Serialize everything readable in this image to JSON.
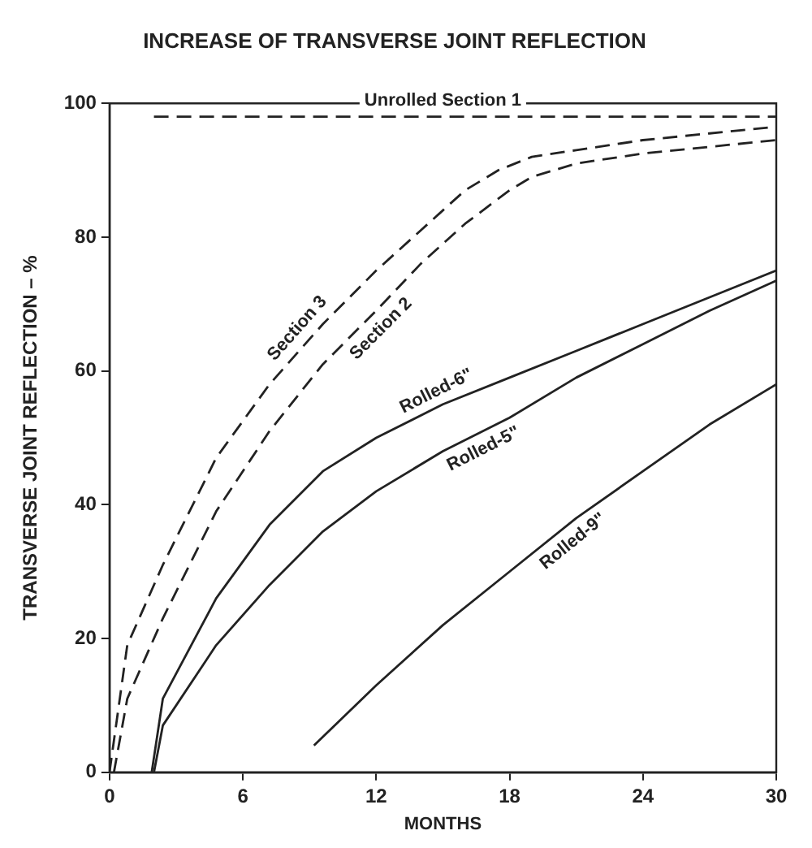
{
  "chart_data": {
    "type": "line",
    "title": "INCREASE OF TRANSVERSE JOINT REFLECTION",
    "xlabel": "MONTHS",
    "ylabel": "TRANSVERSE JOINT REFLECTION – %",
    "xlim": [
      0,
      30
    ],
    "ylim": [
      0,
      100
    ],
    "xticks": [
      0,
      6,
      12,
      18,
      24,
      30
    ],
    "yticks": [
      0,
      20,
      40,
      60,
      80,
      100
    ],
    "legend": false,
    "marker": "none",
    "series": [
      {
        "name": "Unrolled Section 1",
        "color": "#222222",
        "line_style": "dashed",
        "x": [
          2,
          30
        ],
        "values": [
          98,
          98
        ]
      },
      {
        "name": "Section 3",
        "color": "#222222",
        "line_style": "dashed",
        "x": [
          0,
          0.8,
          2.4,
          4.8,
          7.2,
          9.6,
          12,
          14,
          16,
          17.5,
          19,
          21,
          24,
          27,
          30
        ],
        "values": [
          0,
          19,
          31,
          47,
          58,
          67,
          75,
          81,
          87,
          90,
          92,
          93,
          94.5,
          95.5,
          96.5
        ]
      },
      {
        "name": "Section 2",
        "color": "#222222",
        "line_style": "dashed",
        "x": [
          0.2,
          0.8,
          2.4,
          4.8,
          7.2,
          9.6,
          12,
          14,
          16,
          18,
          19,
          21,
          24,
          27,
          30
        ],
        "values": [
          0,
          11,
          23,
          39,
          51,
          61,
          69,
          76,
          82,
          87,
          89,
          91,
          92.5,
          93.5,
          94.5
        ]
      },
      {
        "name": "Rolled-6\"",
        "color": "#222222",
        "line_style": "solid",
        "x": [
          1.9,
          2.4,
          4.8,
          7.2,
          9.6,
          12,
          15,
          18,
          21,
          24,
          27,
          30
        ],
        "values": [
          0,
          11,
          26,
          37,
          45,
          50,
          55,
          59,
          63,
          67,
          71,
          75
        ]
      },
      {
        "name": "Rolled-5\"",
        "color": "#222222",
        "line_style": "solid",
        "x": [
          2,
          2.4,
          4.8,
          7.2,
          9.6,
          12,
          15,
          18,
          21,
          24,
          27,
          30
        ],
        "values": [
          0,
          7,
          19,
          28,
          36,
          42,
          48,
          53,
          59,
          64,
          69,
          73.5
        ]
      },
      {
        "name": "Rolled-9\"",
        "color": "#222222",
        "line_style": "solid",
        "x": [
          9.2,
          12,
          15,
          18,
          21,
          24,
          27,
          30
        ],
        "values": [
          4,
          13,
          22,
          30,
          38,
          45,
          52,
          58
        ]
      }
    ]
  }
}
